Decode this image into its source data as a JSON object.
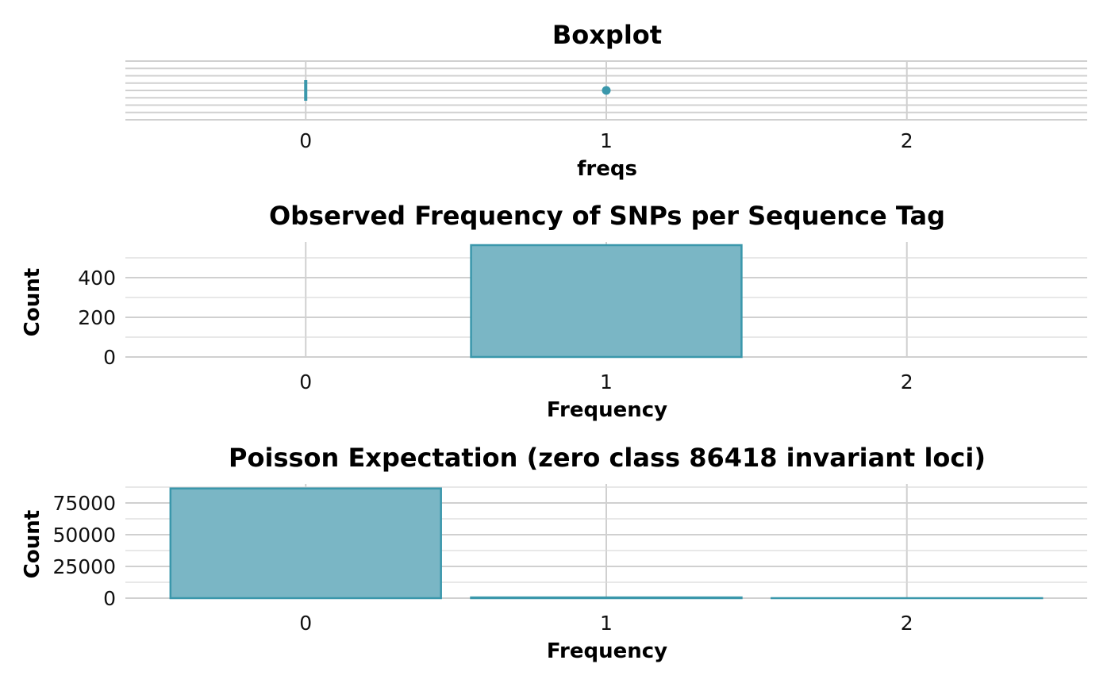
{
  "colors": {
    "fill": "#7ab6c5",
    "stroke": "#3a97ab",
    "grid": "#d0d0d0"
  },
  "chart_data": [
    {
      "type": "boxplot",
      "title": "Boxplot",
      "xlabel": "freqs",
      "ylabel": "",
      "x_ticks": [
        "0",
        "1",
        "2"
      ],
      "xlim": [
        -0.6,
        2.6
      ],
      "box": {
        "min": 0,
        "q1": 0,
        "median": 0,
        "q3": 0,
        "max": 0
      },
      "outliers": [
        1
      ],
      "grid": true
    },
    {
      "type": "bar",
      "title": "Observed Frequency of SNPs per Sequence Tag",
      "xlabel": "Frequency",
      "ylabel": "Count",
      "categories": [
        "0",
        "1",
        "2"
      ],
      "values": [
        0,
        564,
        0
      ],
      "y_ticks": [
        "0",
        "200",
        "400"
      ],
      "ylim": [
        0,
        580
      ],
      "grid": true
    },
    {
      "type": "bar",
      "title": "Poisson Expectation (zero class 86418 invariant loci)",
      "xlabel": "Frequency",
      "ylabel": "Count",
      "categories": [
        "0",
        "1",
        "2"
      ],
      "values": [
        86418,
        560,
        2
      ],
      "y_ticks": [
        "0",
        "25000",
        "50000",
        "75000"
      ],
      "ylim": [
        0,
        90000
      ],
      "grid": true
    }
  ]
}
